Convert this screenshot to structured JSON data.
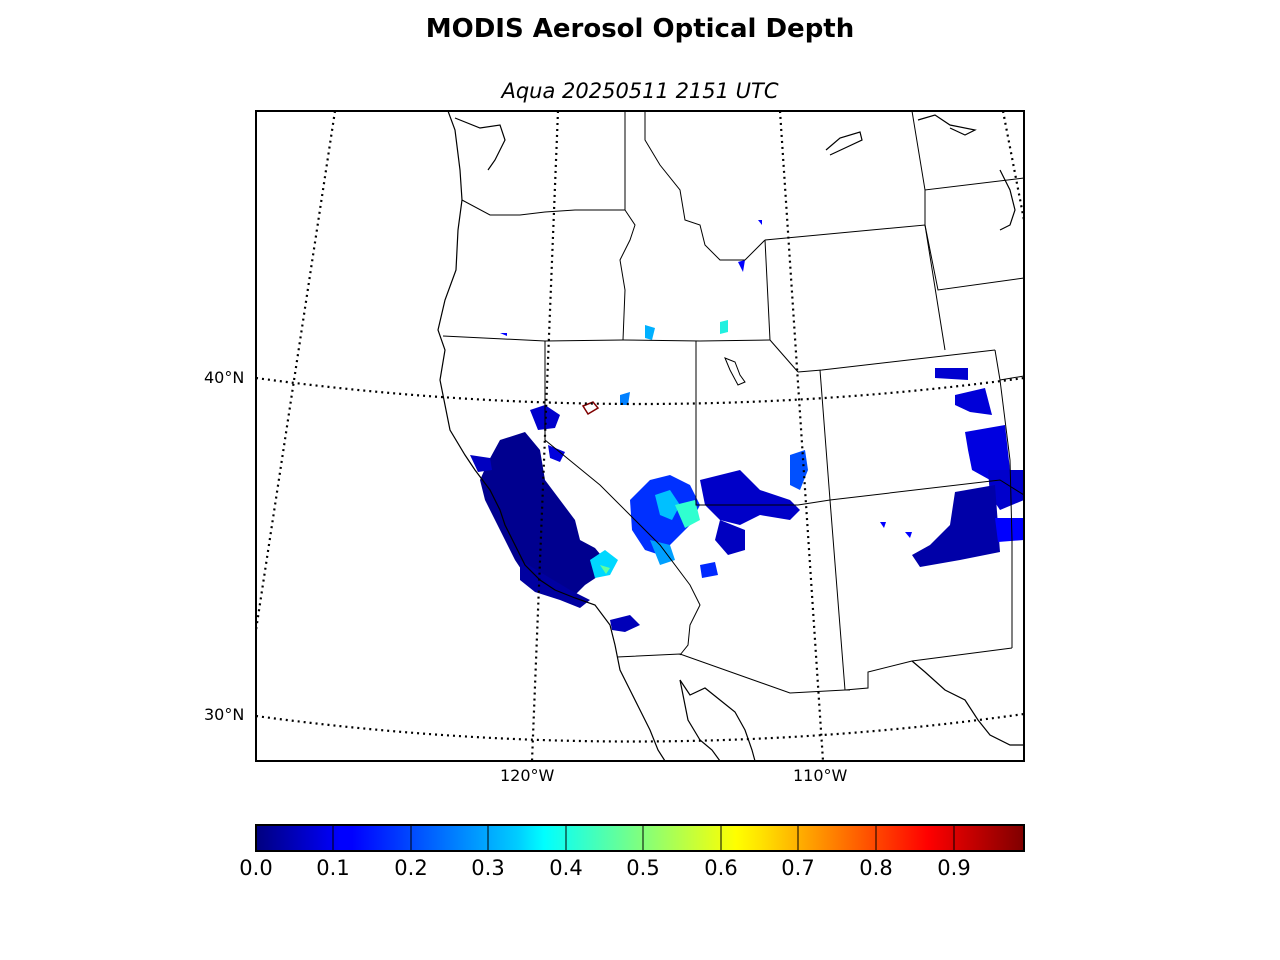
{
  "title": "MODIS Aerosol Optical Depth",
  "subtitle": "Aqua 20250511 2151 UTC",
  "map": {
    "lat_labels": [
      "40°N",
      "30°N"
    ],
    "lon_labels": [
      "120°W",
      "110°W"
    ],
    "graticule": "dotted",
    "frame": "black"
  },
  "colorbar": {
    "colormap": "jet",
    "vmin": 0.0,
    "vmax": 1.0,
    "ticks": [
      "0.0",
      "0.1",
      "0.2",
      "0.3",
      "0.4",
      "0.5",
      "0.6",
      "0.7",
      "0.8",
      "0.9"
    ],
    "colors": [
      "#00007f",
      "#0000ff",
      "#007fff",
      "#00ffff",
      "#7fff7f",
      "#ffff00",
      "#ff7f00",
      "#ff0000",
      "#7f0000"
    ]
  }
}
